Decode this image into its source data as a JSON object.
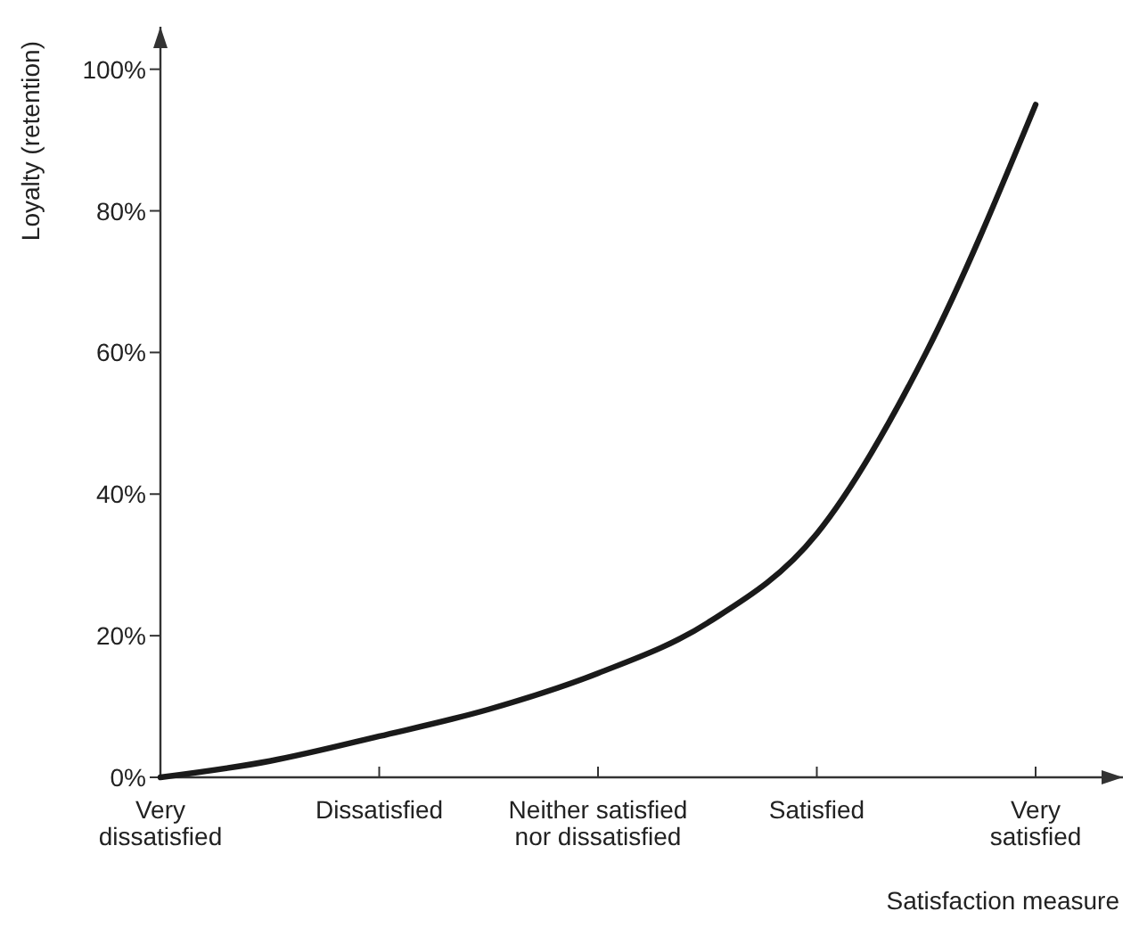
{
  "chart_data": {
    "type": "line",
    "xlabel": "Satisfaction measure",
    "ylabel": "Loyalty (retention)",
    "categories": [
      "Very\ndissatisfied",
      null,
      "Dissatisfied",
      null,
      "Neither satisfied\nnor dissatisfied",
      null,
      "Satisfied",
      null,
      "Very\nsatisfied"
    ],
    "series": [
      {
        "color": "#1a1a1a",
        "values": [
          0,
          2.3,
          5.8,
          9.6,
          14.7,
          21.8,
          34.4,
          60,
          95
        ]
      }
    ],
    "ylim": [
      0,
      106
    ],
    "yticks": [
      {
        "value": 0,
        "label": "0%"
      },
      {
        "value": 20,
        "label": "20%"
      },
      {
        "value": 40,
        "label": "40%"
      },
      {
        "value": 60,
        "label": "60%"
      },
      {
        "value": 80,
        "label": "80%"
      },
      {
        "value": 100,
        "label": "100%"
      }
    ],
    "grid": false,
    "marker": "none",
    "line_style": "solid"
  }
}
